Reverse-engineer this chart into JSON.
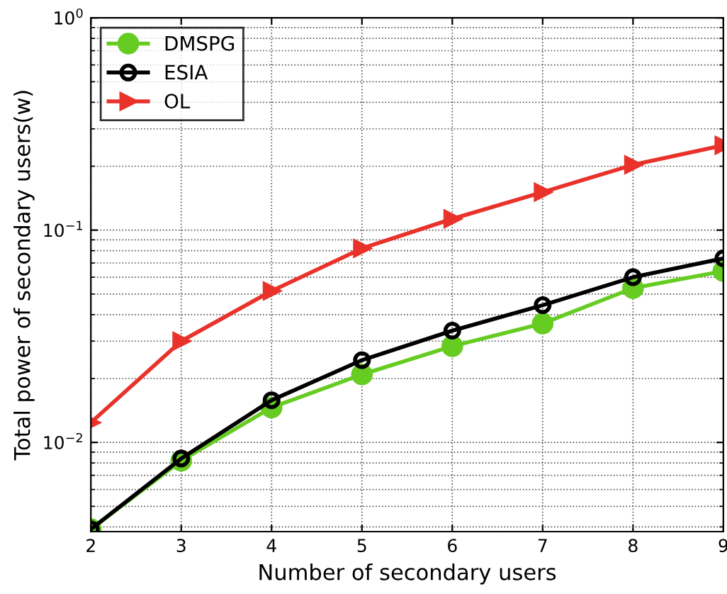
{
  "chart_data": {
    "type": "line",
    "xlabel": "Number of secondary users",
    "ylabel": "Total power of secondary users(w)",
    "x": [
      2,
      3,
      4,
      5,
      6,
      7,
      8,
      9
    ],
    "series": [
      {
        "name": "DMSPG",
        "color": "#66cc22",
        "marker": "circle",
        "values": [
          0.0039,
          0.0082,
          0.0146,
          0.0209,
          0.0284,
          0.0363,
          0.0533,
          0.0641
        ]
      },
      {
        "name": "ESIA",
        "color": "#000000",
        "marker": "circle",
        "values": [
          0.0039,
          0.0084,
          0.0158,
          0.0244,
          0.0336,
          0.0443,
          0.06,
          0.0736
        ]
      },
      {
        "name": "OL",
        "color": "#e8322a",
        "marker": "triangle",
        "values": [
          0.0124,
          0.03,
          0.0517,
          0.082,
          0.113,
          0.151,
          0.203,
          0.251
        ]
      }
    ],
    "log": "y",
    "xlim": [
      2,
      9
    ],
    "xticks": [
      2,
      3,
      4,
      5,
      6,
      7,
      8,
      9
    ],
    "ylim": [
      0.0038,
      1
    ],
    "yticks": [
      {
        "value": 0.01,
        "label": "10$^{−2}$"
      },
      {
        "value": 0.1,
        "label": "10$^{−1}$"
      },
      {
        "value": 1,
        "label": "10$^{0}$"
      }
    ],
    "grid": true,
    "legend": "top left",
    "line_style": "solid"
  }
}
